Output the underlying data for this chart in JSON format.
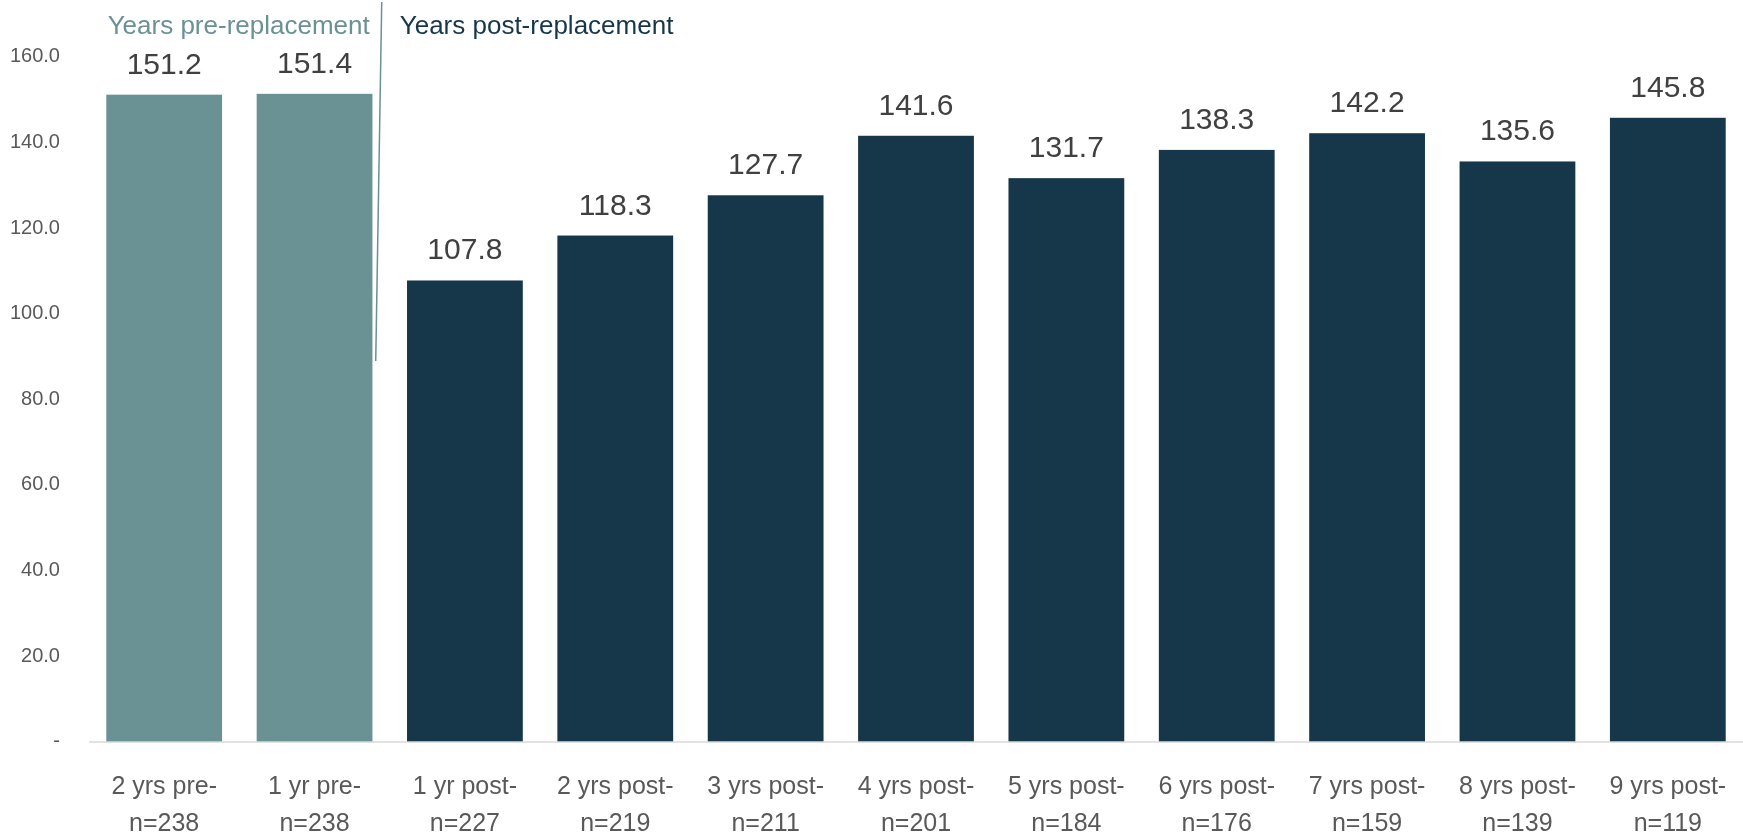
{
  "chart_data": {
    "type": "bar",
    "categories": [
      "2 yrs pre-\nn=238",
      "1 yr pre-\nn=238",
      "1 yr post-\nn=227",
      "2 yrs post-\nn=219",
      "3 yrs post-\nn=211",
      "4 yrs post-\nn=201",
      "5 yrs post-\nn=184",
      "6 yrs post-\nn=176",
      "7 yrs post-\nn=159",
      "8 yrs post-\nn=139",
      "9 yrs post-\nn=119"
    ],
    "series": [
      {
        "name": "Years pre-replacement",
        "color": "#6a9194",
        "values": [
          151.2,
          151.4,
          null,
          null,
          null,
          null,
          null,
          null,
          null,
          null,
          null
        ]
      },
      {
        "name": "Years post-replacement",
        "color": "#16364a",
        "values": [
          null,
          null,
          107.8,
          118.3,
          127.7,
          141.6,
          131.7,
          138.3,
          142.2,
          135.6,
          145.8
        ]
      }
    ],
    "ylim": [
      0,
      160
    ],
    "yticks": [
      {
        "value": 0,
        "label": "-"
      },
      {
        "value": 20,
        "label": "20.0"
      },
      {
        "value": 40,
        "label": "40.0"
      },
      {
        "value": 60,
        "label": "60.0"
      },
      {
        "value": 80,
        "label": "80.0"
      },
      {
        "value": 100,
        "label": "100.0"
      },
      {
        "value": 120,
        "label": "120.0"
      },
      {
        "value": 140,
        "label": "140.0"
      },
      {
        "value": 160,
        "label": "160.0"
      }
    ],
    "data_labels": true
  }
}
